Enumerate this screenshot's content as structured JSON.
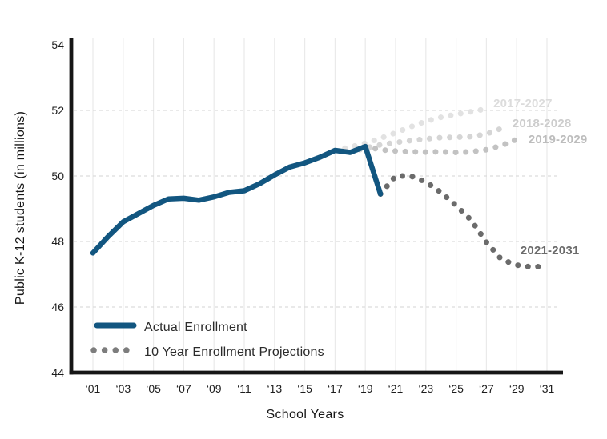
{
  "chart_data": {
    "type": "line",
    "title": "",
    "xlabel": "School Years",
    "ylabel": "Public K-12 students (in millions)",
    "xlim": [
      2001,
      2031
    ],
    "ylim": [
      44,
      54
    ],
    "grid": {
      "vertical": true,
      "horizontal_dashed_at": [
        46,
        48,
        50,
        52
      ]
    },
    "x_ticks": [
      {
        "year": 2001,
        "label": "‘01"
      },
      {
        "year": 2003,
        "label": "‘03"
      },
      {
        "year": 2005,
        "label": "‘05"
      },
      {
        "year": 2007,
        "label": "‘07"
      },
      {
        "year": 2009,
        "label": "‘09"
      },
      {
        "year": 2011,
        "label": "‘11"
      },
      {
        "year": 2013,
        "label": "‘13"
      },
      {
        "year": 2015,
        "label": "‘15"
      },
      {
        "year": 2017,
        "label": "‘17"
      },
      {
        "year": 2019,
        "label": "‘19"
      },
      {
        "year": 2021,
        "label": "‘21"
      },
      {
        "year": 2023,
        "label": "‘23"
      },
      {
        "year": 2025,
        "label": "‘25"
      },
      {
        "year": 2027,
        "label": "‘27"
      },
      {
        "year": 2029,
        "label": "‘29"
      },
      {
        "year": 2031,
        "label": "‘31"
      }
    ],
    "y_ticks": [
      {
        "value": 54,
        "label": "54"
      },
      {
        "value": 52,
        "label": "52"
      },
      {
        "value": 50,
        "label": "50"
      },
      {
        "value": 48,
        "label": "48"
      },
      {
        "value": 46,
        "label": "46"
      },
      {
        "value": 44,
        "label": "44"
      }
    ],
    "series": [
      {
        "name": "Actual Enrollment",
        "style": "solid",
        "color": "#125680",
        "points": [
          [
            2001,
            47.65
          ],
          [
            2002,
            48.15
          ],
          [
            2003,
            48.6
          ],
          [
            2004,
            48.85
          ],
          [
            2005,
            49.1
          ],
          [
            2006,
            49.3
          ],
          [
            2007,
            49.32
          ],
          [
            2008,
            49.26
          ],
          [
            2009,
            49.36
          ],
          [
            2010,
            49.5
          ],
          [
            2011,
            49.55
          ],
          [
            2012,
            49.76
          ],
          [
            2013,
            50.03
          ],
          [
            2014,
            50.27
          ],
          [
            2015,
            50.4
          ],
          [
            2016,
            50.57
          ],
          [
            2017,
            50.78
          ],
          [
            2018,
            50.72
          ],
          [
            2019,
            50.9
          ],
          [
            2020,
            49.45
          ]
        ]
      },
      {
        "name": "2017-2027 projection",
        "style": "dotted",
        "color": "#e2e2e2",
        "points": [
          [
            2017,
            50.78
          ],
          [
            2018,
            50.88
          ],
          [
            2019,
            51.0
          ],
          [
            2020,
            51.15
          ],
          [
            2021,
            51.32
          ],
          [
            2022,
            51.5
          ],
          [
            2023,
            51.67
          ],
          [
            2024,
            51.79
          ],
          [
            2025,
            51.88
          ],
          [
            2026,
            51.96
          ],
          [
            2027,
            52.05
          ]
        ]
      },
      {
        "name": "2018-2028 projection",
        "style": "dotted",
        "color": "#d5d5d5",
        "points": [
          [
            2018,
            50.72
          ],
          [
            2019,
            50.85
          ],
          [
            2020,
            50.95
          ],
          [
            2021,
            51.02
          ],
          [
            2022,
            51.08
          ],
          [
            2023,
            51.13
          ],
          [
            2024,
            51.17
          ],
          [
            2025,
            51.18
          ],
          [
            2026,
            51.2
          ],
          [
            2027,
            51.28
          ],
          [
            2028,
            51.45
          ]
        ]
      },
      {
        "name": "2019-2029 projection",
        "style": "dotted",
        "color": "#c2c2c2",
        "points": [
          [
            2019,
            50.9
          ],
          [
            2020,
            50.8
          ],
          [
            2021,
            50.76
          ],
          [
            2022,
            50.74
          ],
          [
            2023,
            50.73
          ],
          [
            2024,
            50.74
          ],
          [
            2025,
            50.72
          ],
          [
            2026,
            50.74
          ],
          [
            2027,
            50.8
          ],
          [
            2028,
            50.93
          ],
          [
            2029,
            51.12
          ]
        ]
      },
      {
        "name": "2021-2031 projection",
        "style": "dotted",
        "color": "#6b6b6b",
        "points": [
          [
            2020,
            49.45
          ],
          [
            2021,
            50.0
          ],
          [
            2022,
            50.0
          ],
          [
            2023,
            49.82
          ],
          [
            2024,
            49.5
          ],
          [
            2025,
            49.1
          ],
          [
            2026,
            48.65
          ],
          [
            2027,
            47.98
          ],
          [
            2028,
            47.45
          ],
          [
            2029,
            47.28
          ],
          [
            2030,
            47.22
          ],
          [
            2031,
            47.25
          ]
        ]
      }
    ],
    "annotations": [
      {
        "text": "2017-2027",
        "year": 2027.46,
        "value": 52.1,
        "color": "#dcdcdc"
      },
      {
        "text": "2018-2028",
        "year": 2028.72,
        "value": 51.49,
        "color": "#cdcdcd"
      },
      {
        "text": "2019-2029",
        "year": 2029.78,
        "value": 51.0,
        "color": "#bdbdbd"
      },
      {
        "text": "2021-2031",
        "year": 2029.25,
        "value": 47.61,
        "color": "#6b6b6b"
      }
    ],
    "legend": {
      "position": "inside-bottom-left",
      "entries": [
        {
          "label": "Actual Enrollment",
          "marker": "line",
          "color": "#125680"
        },
        {
          "label": "10 Year Enrollment Projections",
          "marker": "dots",
          "color": "#7d7d7d"
        }
      ]
    }
  }
}
